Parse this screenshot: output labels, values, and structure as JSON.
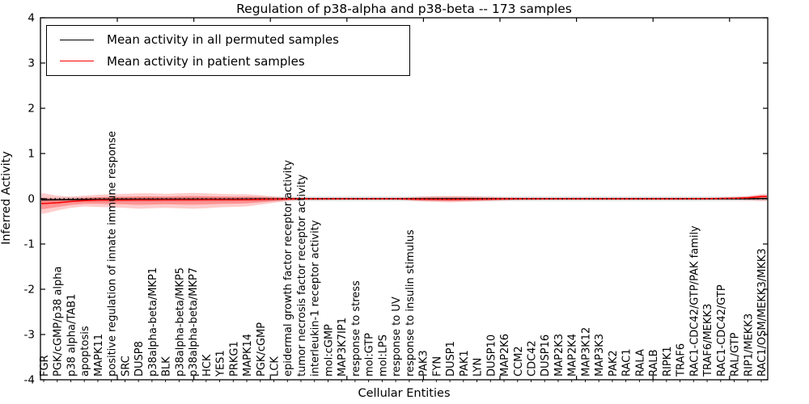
{
  "figure": {
    "title": "Regulation of p38-alpha and p38-beta -- 173 samples"
  },
  "legend": {
    "position": "upper left",
    "entries": [
      {
        "label": "Mean activity in all permuted samples",
        "color": "#000000"
      },
      {
        "label": "Mean activity in patient samples",
        "color": "#ff0000"
      }
    ]
  },
  "chart_data": {
    "type": "line",
    "title": "Regulation of p38-alpha and p38-beta -- 173 samples",
    "xlabel": "Cellular Entities",
    "ylabel": "Inferred Activity",
    "ylim": [
      -4,
      4
    ],
    "yticks": [
      -4,
      -3,
      -2,
      -1,
      0,
      1,
      2,
      3,
      4
    ],
    "grid": false,
    "legend_position": "upper left",
    "zero_line": {
      "style": "dotted",
      "color": "#000000",
      "y": 0
    },
    "categories": [
      "FGR",
      "PGK/cGMP/p38 alpha",
      "p38 alpha/TAB1",
      "apoptosis",
      "MAPK11",
      "positive regulation of innate immune response",
      "SRC",
      "DUSP8",
      "p38alpha-beta/MKP1",
      "BLK",
      "p38alpha-beta/MKP5",
      "p38alpha-beta/MKP7",
      "HCK",
      "YES1",
      "PRKG1",
      "MAPK14",
      "PGK/cGMP",
      "LCK",
      "epidermal growth factor receptor activity",
      "tumor necrosis factor receptor activity",
      "interleukin-1 receptor activity",
      "mol:cGMP",
      "MAP3K7IP1",
      "response to stress",
      "mol:GTP",
      "mol:LPS",
      "response to UV",
      "response to insulin stimulus",
      "PAK3",
      "FYN",
      "DUSP1",
      "PAK1",
      "LYN",
      "DUSP10",
      "MAP2K6",
      "CCM2",
      "CDC42",
      "DUSP16",
      "MAP2K3",
      "MAP2K4",
      "MAP3K12",
      "MAP3K3",
      "PAK2",
      "RAC1",
      "RALA",
      "RALB",
      "RIPK1",
      "TRAF6",
      "RAC1-CDC42/GTP/PAK family",
      "TRAF6/MEKK3",
      "RAC1-CDC42/GTP",
      "RAL/GTP",
      "RIP1/MEKK3",
      "RAC1/OSM/MEKK3/MKK3"
    ],
    "series": [
      {
        "name": "Mean activity in all permuted samples",
        "color": "#000000",
        "band_color": "#888888",
        "band_halfwidth": 0.05,
        "values": [
          -0.025,
          -0.02,
          -0.018,
          -0.015,
          -0.012,
          -0.01,
          -0.01,
          -0.01,
          -0.01,
          -0.01,
          -0.01,
          -0.01,
          -0.01,
          -0.01,
          -0.008,
          -0.006,
          -0.005,
          -0.004,
          0,
          0,
          0,
          0,
          0,
          0,
          0,
          0,
          0,
          0,
          0,
          0,
          0,
          0,
          0,
          0,
          0,
          0,
          0,
          0,
          0,
          0,
          0,
          0,
          0,
          0,
          0,
          0,
          0,
          0,
          0,
          0,
          0,
          0,
          0,
          0.005
        ]
      },
      {
        "name": "Mean activity in patient samples",
        "color": "#ff0000",
        "band_color": "#ff0000",
        "values": [
          -0.105,
          -0.09,
          -0.06,
          -0.04,
          -0.03,
          -0.03,
          -0.028,
          -0.027,
          -0.026,
          -0.025,
          -0.024,
          -0.024,
          -0.023,
          -0.022,
          -0.022,
          -0.02,
          -0.015,
          -0.01,
          -0.005,
          0,
          0,
          0,
          0,
          0,
          0,
          0,
          0,
          -0.005,
          -0.01,
          -0.012,
          -0.013,
          -0.012,
          -0.01,
          -0.006,
          -0.003,
          0,
          0,
          0,
          0,
          0,
          0,
          0,
          0,
          0,
          0,
          0,
          0,
          0,
          0.002,
          0.003,
          0.006,
          0.012,
          0.02,
          0.05
        ],
        "band_upper": [
          0.12,
          0.07,
          0.05,
          0.07,
          0.09,
          0.1,
          0.11,
          0.12,
          0.12,
          0.11,
          0.12,
          0.13,
          0.12,
          0.11,
          0.1,
          0.1,
          0.08,
          0.05,
          0.03,
          0.025,
          0.02,
          0.02,
          0.02,
          0.02,
          0.02,
          0.02,
          0.02,
          0.03,
          0.05,
          0.06,
          0.06,
          0.06,
          0.05,
          0.04,
          0.03,
          0.025,
          0.02,
          0.02,
          0.02,
          0.02,
          0.02,
          0.02,
          0.02,
          0.02,
          0.02,
          0.02,
          0.02,
          0.02,
          0.02,
          0.02,
          0.03,
          0.04,
          0.06,
          0.1
        ],
        "band_lower": [
          -0.33,
          -0.26,
          -0.2,
          -0.17,
          -0.18,
          -0.19,
          -0.2,
          -0.22,
          -0.21,
          -0.2,
          -0.21,
          -0.22,
          -0.21,
          -0.19,
          -0.18,
          -0.17,
          -0.13,
          -0.09,
          -0.05,
          -0.03,
          -0.03,
          -0.025,
          -0.02,
          -0.02,
          -0.02,
          -0.02,
          -0.02,
          -0.04,
          -0.06,
          -0.07,
          -0.08,
          -0.07,
          -0.06,
          -0.05,
          -0.04,
          -0.03,
          -0.025,
          -0.02,
          -0.02,
          -0.02,
          -0.02,
          -0.02,
          -0.02,
          -0.02,
          -0.02,
          -0.02,
          -0.02,
          -0.02,
          -0.02,
          -0.02,
          -0.02,
          -0.02,
          -0.03,
          -0.05
        ]
      }
    ]
  }
}
